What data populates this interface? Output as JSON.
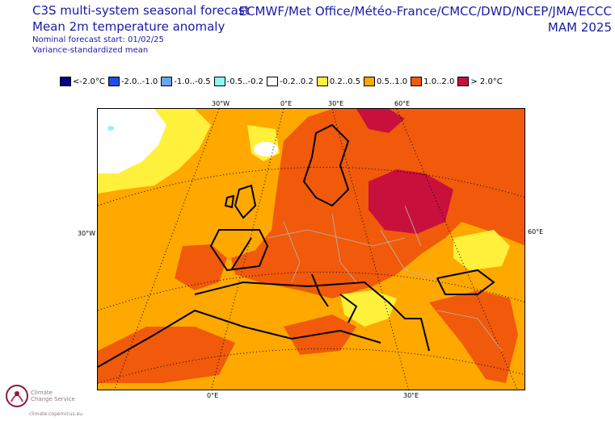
{
  "header": {
    "line1": "C3S multi-system seasonal forecast",
    "line2": "Mean 2m temperature anomaly",
    "line3": "Nominal forecast start: 01/02/25",
    "line4": "Variance-standardized mean",
    "systems": "ECMWF/Met Office/Météo-France/CMCC/DWD/NCEP/JMA/ECCC",
    "season": "MAM 2025"
  },
  "legend": [
    {
      "label": "<-2.0°C",
      "color": "#00008b"
    },
    {
      "label": "-2.0..-1.0",
      "color": "#1f4ef0"
    },
    {
      "label": "-1.0..-0.5",
      "color": "#6aa5f5"
    },
    {
      "label": "-0.5..-0.2",
      "color": "#8ff5f5"
    },
    {
      "label": "-0.2..0.2",
      "color": "#ffffff"
    },
    {
      "label": "0.2..0.5",
      "color": "#fff03c"
    },
    {
      "label": "0.5..1.0",
      "color": "#ffa800"
    },
    {
      "label": "1.0..2.0",
      "color": "#f05a0a"
    },
    {
      "label": "> 2.0°C",
      "color": "#c8103c"
    }
  ],
  "axis_labels": {
    "top_30w": "30°W",
    "top_0e": "0°E",
    "top_30e": "30°E",
    "top_60e": "60°E",
    "left_30w": "30°W",
    "right_60e": "60°E",
    "bottom_0e": "0°E",
    "bottom_30e": "30°E"
  },
  "colors": {
    "bg": "#ffa800",
    "warm": "#f05a0a",
    "hot": "#c8103c",
    "mild": "#fff03c",
    "neutral": "#ffffff",
    "cool": "#8ff5f5"
  },
  "logo": {
    "line1": "Climate",
    "line2": "Change Service",
    "url": "climate.copernicus.eu"
  }
}
